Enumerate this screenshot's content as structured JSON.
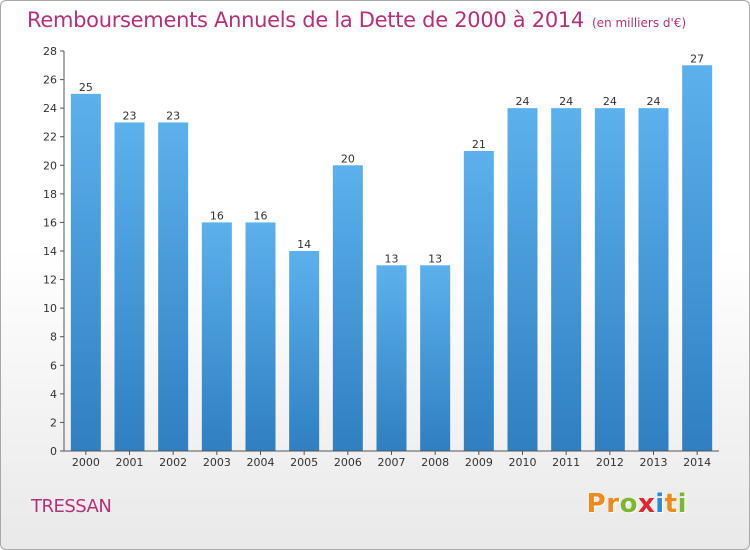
{
  "chart_data": {
    "type": "bar",
    "title": "Remboursements Annuels de la Dette de 2000 à 2014",
    "subtitle": "(en milliers d'€)",
    "categories": [
      "2000",
      "2001",
      "2002",
      "2003",
      "2004",
      "2005",
      "2006",
      "2007",
      "2008",
      "2009",
      "2010",
      "2011",
      "2012",
      "2013",
      "2014"
    ],
    "values": [
      25,
      23,
      23,
      16,
      16,
      14,
      20,
      13,
      13,
      21,
      24,
      24,
      24,
      24,
      27
    ],
    "yticks": [
      0,
      2,
      4,
      6,
      8,
      10,
      12,
      14,
      16,
      18,
      20,
      22,
      24,
      26,
      28
    ],
    "ylim": [
      0,
      28
    ],
    "xlabel": "",
    "ylabel": "",
    "grid": false,
    "bar_color": "#4a9fe0",
    "bar_color_top": "#5cb1ec",
    "bar_color_bottom": "#2f7fc1"
  },
  "location": "TRESSAN",
  "logo": {
    "text": "Proxiti",
    "letters": [
      {
        "char": "P",
        "color": "#f08a1c"
      },
      {
        "char": "r",
        "color": "#f08a1c"
      },
      {
        "char": "o",
        "color": "#7cb82f"
      },
      {
        "char": "x",
        "color": "#e2262e"
      },
      {
        "char": "i",
        "color": "#2a8ad6"
      },
      {
        "char": "t",
        "color": "#f08a1c"
      },
      {
        "char": "i",
        "color": "#7cb82f"
      }
    ]
  },
  "colors": {
    "title": "#b4307a",
    "axis": "#333333",
    "background_top": "#ffffff",
    "background_bottom": "#e9e9e9"
  }
}
